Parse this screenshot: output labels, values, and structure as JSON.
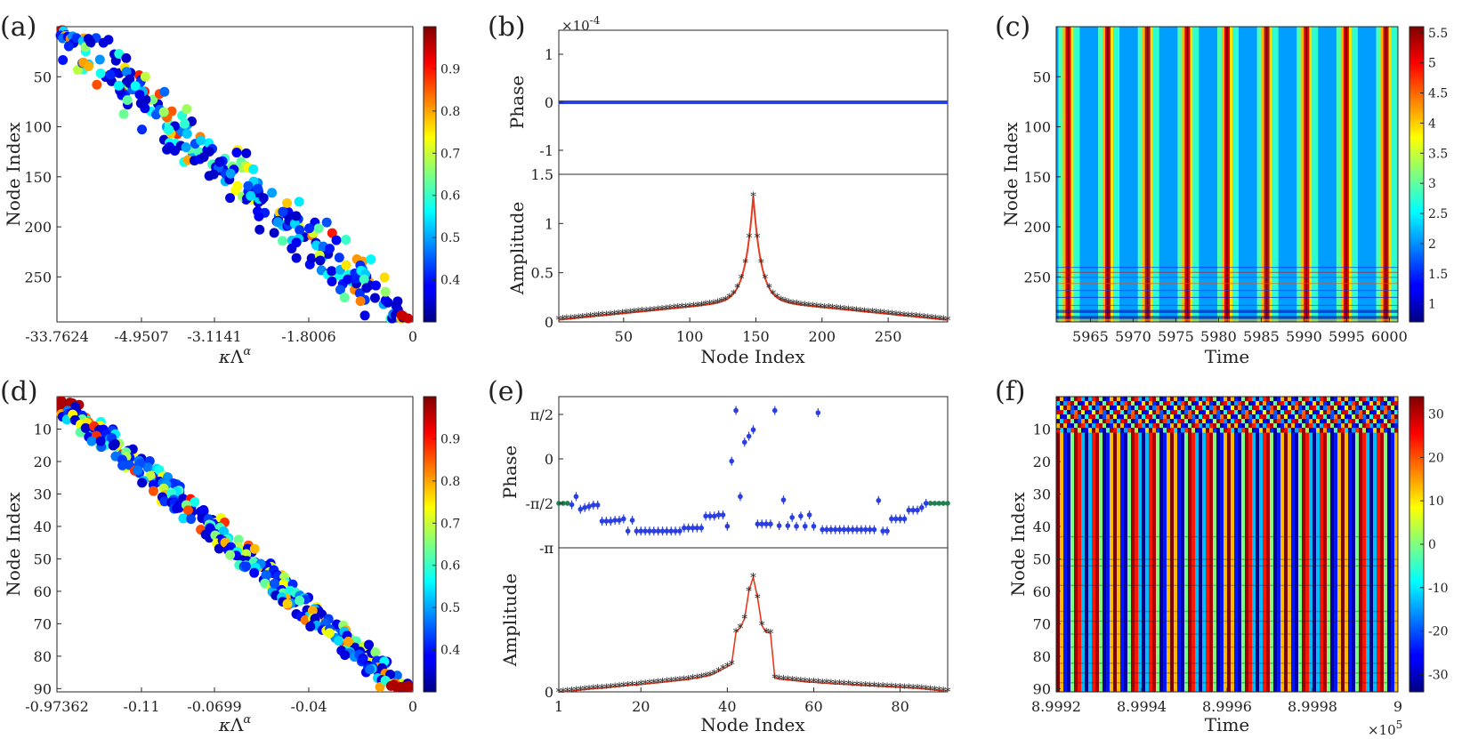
{
  "chart_data": [
    {
      "id": "a",
      "panel_label": "(a)",
      "type": "scatter",
      "xlabel": "κΛ^α",
      "ylabel": "Node Index",
      "x_ticks": [
        "-33.7624",
        "-4.9507",
        "-3.1141",
        "-1.8006",
        "0"
      ],
      "y_ticks": [
        50,
        100,
        150,
        200,
        250
      ],
      "ylim": [
        0,
        295
      ],
      "y_reversed": true,
      "colorbar": {
        "min": 0.3,
        "max": 1.0,
        "ticks": [
          0.4,
          0.5,
          0.6,
          0.7,
          0.8,
          0.9
        ],
        "colormap": "jet"
      },
      "n_points": 295,
      "trend": "linear from (left, node 1) to (0, node 295)",
      "point_spread": 5
    },
    {
      "id": "b",
      "panel_label": "(b)",
      "type": "line",
      "xlabel": "Node Index",
      "x_ticks": [
        50,
        100,
        150,
        200,
        250
      ],
      "xlim": [
        1,
        295
      ],
      "subplots": [
        {
          "ylabel": "Phase",
          "multiplier": "×10^-4",
          "y_ticks": [
            1,
            0,
            -1
          ],
          "ylim": [
            -1.5,
            1.5
          ],
          "series": [
            {
              "name": "phase",
              "color": "#2b3fe0",
              "constant": 0
            }
          ]
        },
        {
          "ylabel": "Amplitude",
          "y_ticks": [
            1.5,
            1,
            0.5,
            0
          ],
          "ylim": [
            0,
            1.5
          ],
          "series": [
            {
              "name": "amplitude",
              "color": "#e83a1f",
              "marker": "*",
              "peak_node": 148,
              "peak_value": 1.28
            }
          ]
        }
      ]
    },
    {
      "id": "c",
      "panel_label": "(c)",
      "type": "heatmap",
      "xlabel": "Time",
      "ylabel": "Node Index",
      "x_ticks": [
        5965,
        5970,
        5975,
        5980,
        5985,
        5990,
        5995,
        6000
      ],
      "xlim": [
        5961,
        6001
      ],
      "y_ticks": [
        50,
        100,
        150,
        200,
        250
      ],
      "ylim": [
        0,
        295
      ],
      "y_reversed": true,
      "period": 4.65,
      "first_peak": 5962.4,
      "colorbar": {
        "min": 0.7,
        "max": 5.6,
        "ticks": [
          1,
          1.5,
          2,
          2.5,
          3,
          3.5,
          4,
          4.5,
          5,
          5.5
        ],
        "colormap": "jet"
      }
    },
    {
      "id": "d",
      "panel_label": "(d)",
      "type": "scatter",
      "xlabel": "κΛ^α",
      "ylabel": "Node Index",
      "x_ticks": [
        "-0.97362",
        "-0.11",
        "-0.0699",
        "-0.04",
        "0"
      ],
      "y_ticks": [
        10,
        20,
        30,
        40,
        50,
        60,
        70,
        80,
        90
      ],
      "ylim": [
        0,
        91
      ],
      "y_reversed": true,
      "colorbar": {
        "min": 0.3,
        "max": 1.0,
        "ticks": [
          0.4,
          0.5,
          0.6,
          0.7,
          0.8,
          0.9
        ],
        "colormap": "jet"
      },
      "n_points": 91,
      "trend": "linear staircase from (left, node 1) to (0, node 91)",
      "point_spread": 1.6
    },
    {
      "id": "e",
      "panel_label": "(e)",
      "type": "line",
      "xlabel": "Node Index",
      "x_ticks": [
        1,
        20,
        40,
        60,
        80
      ],
      "xlim": [
        1,
        91
      ],
      "subplots": [
        {
          "ylabel": "Phase",
          "y_ticks": [
            "π/2",
            "0",
            "-π/2",
            "-π"
          ],
          "ylim": [
            -3.1416,
            2.2
          ],
          "series": [
            {
              "name": "phase",
              "color": "#2b3fe0",
              "marker": "*",
              "errorbars": true,
              "values": [
                -1.57,
                -1.57,
                -1.57,
                -1.62,
                -1.33,
                -1.78,
                -1.72,
                -1.68,
                -1.63,
                -1.63,
                -2.2,
                -2.2,
                -2.2,
                -2.17,
                -2.17,
                -2.12,
                -2.55,
                -2.17,
                -2.55,
                -2.55,
                -2.55,
                -2.55,
                -2.55,
                -2.55,
                -2.55,
                -2.55,
                -2.55,
                -2.55,
                -2.55,
                -2.44,
                -2.44,
                -2.44,
                -2.44,
                -2.44,
                -2.02,
                -2.02,
                -2.02,
                -1.98,
                -1.98,
                -2.38,
                -0.08,
                1.71,
                -1.33,
                0.59,
                0.8,
                1.03,
                -2.3,
                -2.3,
                -2.3,
                -2.3,
                1.71,
                -2.36,
                -1.45,
                -2.36,
                -2.07,
                -2.38,
                -2.02,
                -2.38,
                -1.98,
                -2.38,
                1.63,
                -2.5,
                -2.5,
                -2.5,
                -2.5,
                -2.5,
                -2.5,
                -2.5,
                -2.5,
                -2.5,
                -2.5,
                -2.5,
                -2.5,
                -2.5,
                -1.47,
                -2.55,
                -2.55,
                -2.12,
                -2.12,
                -2.12,
                -2.12,
                -1.81,
                -1.81,
                -1.81,
                -1.72,
                -1.57,
                -1.57,
                -1.57,
                -1.57,
                -1.57,
                -1.57
              ]
            },
            {
              "name": "boundary",
              "color": "#1f7f4f",
              "nodes": [
                1,
                2,
                3,
                87,
                88,
                89,
                90,
                91
              ]
            }
          ]
        },
        {
          "ylabel": "Amplitude",
          "y_ticks": [
            "π",
            "0"
          ],
          "ylim": [
            0,
            3.1416
          ],
          "series": [
            {
              "name": "amplitude",
              "color": "#e83a1f",
              "marker": "*",
              "values": [
                0.0,
                0.0,
                0.01,
                0.02,
                0.03,
                0.04,
                0.05,
                0.06,
                0.07,
                0.08,
                0.08,
                0.09,
                0.1,
                0.11,
                0.12,
                0.13,
                0.14,
                0.15,
                0.15,
                0.16,
                0.17,
                0.18,
                0.19,
                0.2,
                0.21,
                0.22,
                0.23,
                0.24,
                0.25,
                0.26,
                0.27,
                0.29,
                0.3,
                0.32,
                0.34,
                0.36,
                0.4,
                0.45,
                0.5,
                0.55,
                0.6,
                1.3,
                1.4,
                1.6,
                2.2,
                2.5,
                2.05,
                1.45,
                1.3,
                1.28,
                0.3,
                0.28,
                0.27,
                0.26,
                0.25,
                0.24,
                0.23,
                0.22,
                0.21,
                0.21,
                0.2,
                0.19,
                0.19,
                0.18,
                0.17,
                0.17,
                0.16,
                0.16,
                0.15,
                0.15,
                0.14,
                0.14,
                0.13,
                0.13,
                0.12,
                0.12,
                0.11,
                0.11,
                0.1,
                0.1,
                0.09,
                0.09,
                0.08,
                0.08,
                0.07,
                0.06,
                0.05,
                0.04,
                0.03,
                0.02,
                0.01
              ]
            }
          ]
        }
      ]
    },
    {
      "id": "f",
      "panel_label": "(f)",
      "type": "heatmap",
      "xlabel": "Time",
      "ylabel": "Node Index",
      "x_multiplier": "×10^5",
      "x_ticks": [
        "8.9992",
        "8.9994",
        "8.9996",
        "8.9998",
        "9"
      ],
      "xlim": [
        8.9992,
        9.0
      ],
      "y_ticks": [
        10,
        20,
        30,
        40,
        50,
        60,
        70,
        80,
        90
      ],
      "ylim": [
        0,
        91
      ],
      "y_reversed": true,
      "cycles": 18,
      "colorbar": {
        "min": -34,
        "max": 34,
        "ticks": [
          30,
          20,
          10,
          0,
          -10,
          -20,
          -30
        ],
        "colormap": "jet"
      }
    }
  ]
}
